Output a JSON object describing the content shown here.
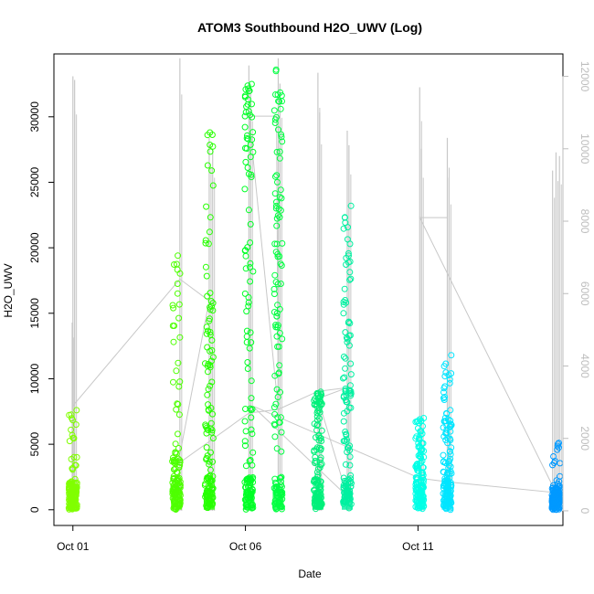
{
  "chart_data": {
    "type": "scatter",
    "title": "ATOM3 Southbound H2O_UWV (Log)",
    "xlabel": "Date",
    "ylabel": "H2O_UWV",
    "x_ticks": [
      {
        "label": "Oct 01",
        "day": 1
      },
      {
        "label": "Oct 06",
        "day": 6
      },
      {
        "label": "Oct 11",
        "day": 11
      }
    ],
    "xlim": [
      0.45,
      15.2
    ],
    "y_left": {
      "ticks": [
        0,
        5000,
        10000,
        15000,
        20000,
        25000,
        30000
      ],
      "ylim": [
        -1200,
        34800
      ]
    },
    "y_right": {
      "ticks": [
        0,
        2000,
        4000,
        6000,
        8000,
        10000,
        12000
      ],
      "ylim": [
        -405,
        12620
      ],
      "color": "#bdbdbd"
    },
    "grid": false,
    "legend": "none",
    "series": [
      {
        "day": 1.0,
        "max": 7600,
        "dense": 2200,
        "color": "#80ff00"
      },
      {
        "day": 4.0,
        "max": 19400,
        "dense": 4500,
        "color": "#4dff00"
      },
      {
        "day": 4.95,
        "max": 28800,
        "dense": 15500,
        "color": "#26ff00"
      },
      {
        "day": 6.1,
        "max": 32500,
        "dense": 30000,
        "color": "#00ff26"
      },
      {
        "day": 6.95,
        "max": 33600,
        "dense": 29000,
        "color": "#00ff40"
      },
      {
        "day": 8.1,
        "max": 9000,
        "dense": 8000,
        "color": "#00f07a"
      },
      {
        "day": 8.95,
        "max": 23200,
        "dense": 16000,
        "color": "#00f0a0"
      },
      {
        "day": 11.05,
        "max": 7000,
        "dense": 5200,
        "color": "#00ffe6"
      },
      {
        "day": 11.85,
        "max": 11800,
        "dense": 7200,
        "color": "#00e5ff"
      },
      {
        "day": 15.0,
        "max": 5100,
        "dense": 1800,
        "color": "#0099ff"
      }
    ],
    "aux_series": {
      "axis": "right",
      "color": "#c8c8c8",
      "spikes": [
        {
          "day": 1.0,
          "top": 12000
        },
        {
          "day": 1.05,
          "top": 11900
        },
        {
          "day": 0.98,
          "top": 5200
        },
        {
          "day": 4.1,
          "top": 12500
        },
        {
          "day": 4.95,
          "top": 10300
        },
        {
          "day": 5.05,
          "top": 10000
        },
        {
          "day": 6.1,
          "top": 12300
        },
        {
          "day": 6.15,
          "top": 11700
        },
        {
          "day": 6.95,
          "top": 12500
        },
        {
          "day": 7.0,
          "top": 11800
        },
        {
          "day": 8.1,
          "top": 12100
        },
        {
          "day": 8.15,
          "top": 11000
        },
        {
          "day": 8.95,
          "top": 10500
        },
        {
          "day": 9.0,
          "top": 10100
        },
        {
          "day": 11.05,
          "top": 11700
        },
        {
          "day": 11.1,
          "top": 10000
        },
        {
          "day": 11.85,
          "top": 10300
        },
        {
          "day": 11.9,
          "top": 9200
        },
        {
          "day": 14.9,
          "top": 9400
        },
        {
          "day": 15.0,
          "top": 9900
        },
        {
          "day": 15.1,
          "top": 9800
        }
      ],
      "path": [
        [
          1.0,
          2900
        ],
        [
          4.1,
          6400
        ],
        [
          4.95,
          5800
        ],
        [
          4.05,
          1300
        ],
        [
          6.1,
          2700
        ],
        [
          6.95,
          2800
        ],
        [
          6.9,
          10900
        ],
        [
          6.1,
          10900
        ],
        [
          6.95,
          2800
        ],
        [
          8.1,
          3300
        ],
        [
          8.95,
          3400
        ],
        [
          8.1,
          3100
        ],
        [
          8.95,
          400
        ],
        [
          6.2,
          2900
        ],
        [
          11.05,
          900
        ],
        [
          11.85,
          800
        ],
        [
          15.0,
          500
        ],
        [
          11.05,
          8100
        ],
        [
          11.85,
          8100
        ]
      ]
    }
  }
}
